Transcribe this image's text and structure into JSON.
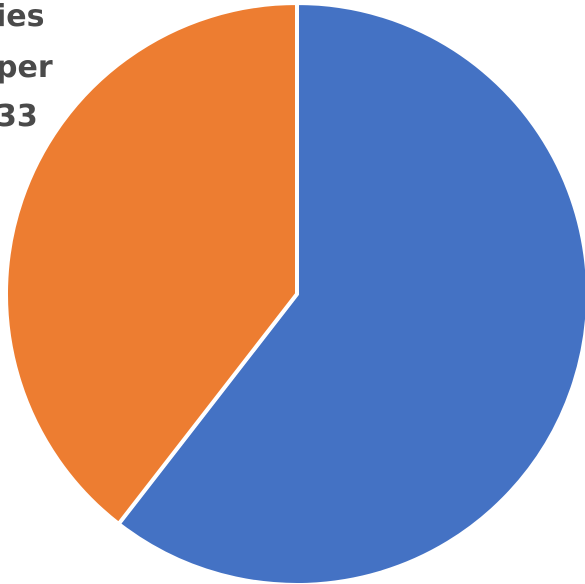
{
  "chart_data": {
    "type": "pie",
    "title": "",
    "slices": [
      {
        "name": "",
        "value": 60.5,
        "color": "#4472C4"
      },
      {
        "name": "",
        "value": 39.5,
        "color": "#ED7D31"
      }
    ],
    "start_angle_deg": 0,
    "direction": "clockwise",
    "legend": "none"
  },
  "labels": {
    "line1": "ies",
    "line2": "per",
    "line3": "33"
  }
}
